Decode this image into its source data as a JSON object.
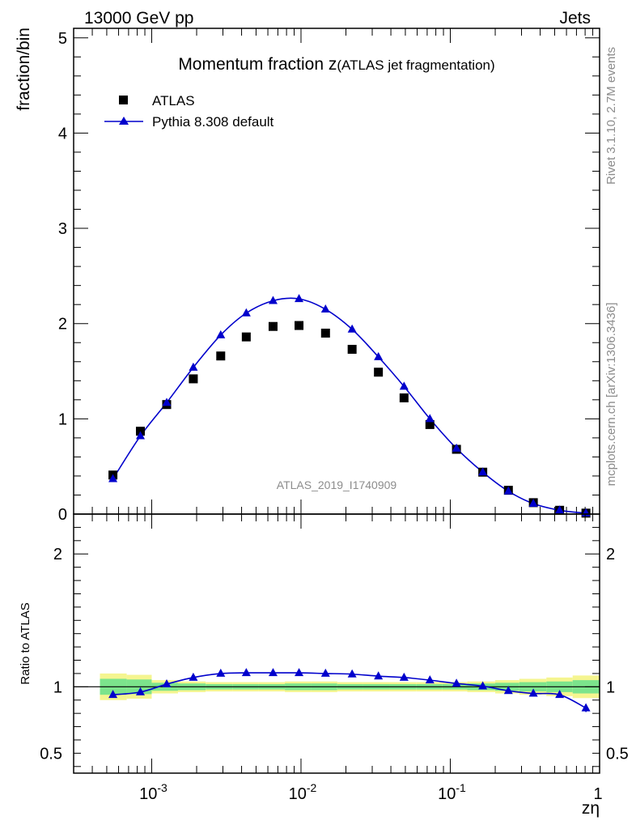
{
  "header": {
    "left": "13000 GeV pp",
    "right": "Jets"
  },
  "side_labels": {
    "rivet": "Rivet 3.1.10,  2.7M events",
    "mcplots": "mcplots.cern.ch [arXiv:1306.3436]"
  },
  "chart_data": [
    {
      "type": "scatter",
      "title": "Momentum fraction z",
      "title_suffix": "(ATLAS jet fragmentation)",
      "ylabel": "fraction/bin",
      "xscale": "log",
      "xlim": [
        0.0003,
        1
      ],
      "ylim": [
        0,
        5.1
      ],
      "yticks": [
        0,
        1,
        2,
        3,
        4,
        5
      ],
      "legend_position": "top-left",
      "watermark": "ATLAS_2019_I1740909",
      "x": [
        0.00055,
        0.00084,
        0.00126,
        0.0019,
        0.0029,
        0.0043,
        0.0065,
        0.0097,
        0.0146,
        0.022,
        0.033,
        0.049,
        0.073,
        0.11,
        0.165,
        0.245,
        0.36,
        0.54,
        0.81
      ],
      "series": [
        {
          "name": "ATLAS",
          "marker": "square",
          "color": "#000000",
          "values": [
            0.41,
            0.87,
            1.15,
            1.42,
            1.66,
            1.86,
            1.97,
            1.98,
            1.9,
            1.73,
            1.49,
            1.22,
            0.94,
            0.68,
            0.44,
            0.25,
            0.12,
            0.04,
            0.01
          ]
        },
        {
          "name": "Pythia 8.308 default",
          "marker": "triangle",
          "color": "#0000cc",
          "values": [
            0.37,
            0.82,
            1.17,
            1.54,
            1.88,
            2.11,
            2.24,
            2.26,
            2.15,
            1.94,
            1.65,
            1.34,
            1.0,
            0.69,
            0.44,
            0.24,
            0.11,
            0.04,
            0.01
          ]
        }
      ]
    },
    {
      "type": "scatter",
      "ylabel": "Ratio to ATLAS",
      "xlabel": "zη",
      "xscale": "log",
      "xlim": [
        0.0003,
        1
      ],
      "ylim": [
        0.35,
        2.3
      ],
      "yticks": [
        0.5,
        1,
        2
      ],
      "ytick_labels": [
        "0.5",
        "1",
        "2"
      ],
      "xtick_labels": [
        "10^-3",
        "10^-2",
        "10^-1",
        "1"
      ],
      "band_edges": [
        0.00045,
        0.00068,
        0.001,
        0.0015,
        0.0023,
        0.0035,
        0.0052,
        0.0078,
        0.0117,
        0.0175,
        0.026,
        0.039,
        0.059,
        0.088,
        0.13,
        0.2,
        0.29,
        0.44,
        0.66,
        1.0
      ],
      "band_inner": [
        0.06,
        0.055,
        0.03,
        0.025,
        0.02,
        0.02,
        0.02,
        0.025,
        0.025,
        0.02,
        0.02,
        0.02,
        0.02,
        0.02,
        0.025,
        0.03,
        0.035,
        0.04,
        0.05
      ],
      "band_outer": [
        0.1,
        0.09,
        0.05,
        0.04,
        0.035,
        0.035,
        0.035,
        0.04,
        0.04,
        0.035,
        0.035,
        0.035,
        0.035,
        0.035,
        0.04,
        0.05,
        0.06,
        0.07,
        0.085
      ],
      "band_colors": {
        "inner": "#7ce48c",
        "outer": "#f5f590"
      },
      "series": [
        {
          "name": "Pythia 8.308 default",
          "color": "#0000cc",
          "values": [
            0.94,
            0.96,
            1.02,
            1.07,
            1.1,
            1.105,
            1.105,
            1.105,
            1.1,
            1.095,
            1.08,
            1.07,
            1.05,
            1.025,
            1.005,
            0.97,
            0.95,
            0.94,
            0.84
          ],
          "errors": [
            0.01,
            0.01,
            0.005,
            0.005,
            0.005,
            0.005,
            0.005,
            0.005,
            0.005,
            0.005,
            0.005,
            0.005,
            0.005,
            0.005,
            0.005,
            0.005,
            0.005,
            0.01,
            0.03
          ]
        }
      ]
    }
  ]
}
